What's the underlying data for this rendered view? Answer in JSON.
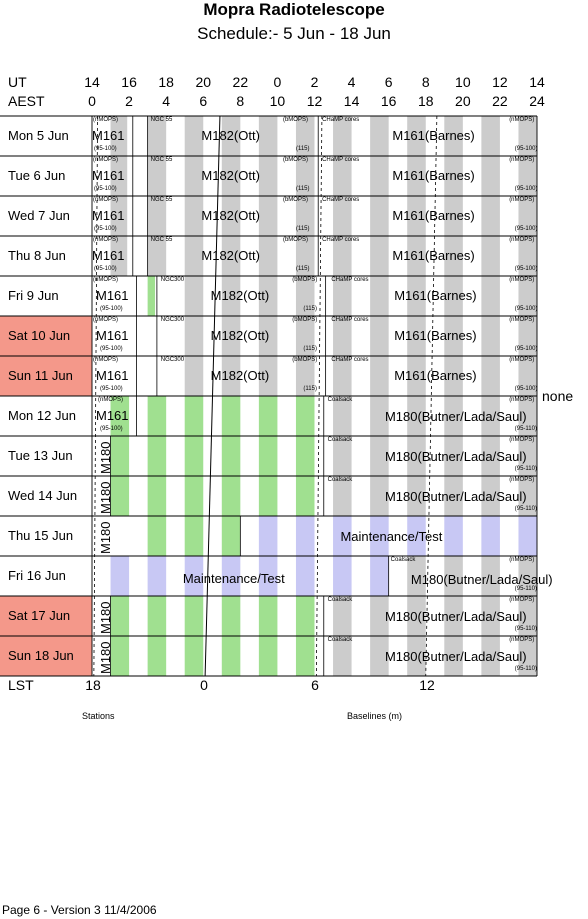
{
  "title": "Mopra Radiotelescope",
  "subtitle": "Schedule:- 5  Jun - 18 Jun",
  "ut_label": "UT",
  "aest_label": "AEST",
  "lst_label": "LST",
  "ut_ticks": [
    "14",
    "16",
    "18",
    "20",
    "22",
    "0",
    "2",
    "4",
    "6",
    "8",
    "10",
    "12",
    "14"
  ],
  "aest_ticks": [
    "0",
    "2",
    "4",
    "6",
    "8",
    "10",
    "12",
    "14",
    "16",
    "18",
    "20",
    "22",
    "24"
  ],
  "lst_ticks": [
    "18",
    "0",
    "6",
    "12"
  ],
  "stations_label": "Stations",
  "baselines_label": "Baselines (m)",
  "none_label": "none",
  "footer": "Page 6 - Version 3  11/4/2006",
  "colors": {
    "weekend": "#f4988a",
    "green": "#a0e090",
    "grey": "#cccccc",
    "blue": "#c8c8f4"
  },
  "days": [
    {
      "label": "Mon    5  Jun",
      "weekend": false
    },
    {
      "label": "Tue    6  Jun",
      "weekend": false
    },
    {
      "label": "Wed   7  Jun",
      "weekend": false
    },
    {
      "label": "Thu    8  Jun",
      "weekend": false
    },
    {
      "label": "Fri     9  Jun",
      "weekend": false
    },
    {
      "label": "Sat   10 Jun",
      "weekend": true
    },
    {
      "label": "Sun   11 Jun",
      "weekend": true
    },
    {
      "label": "Mon   12 Jun",
      "weekend": false
    },
    {
      "label": "Tue    13 Jun",
      "weekend": false
    },
    {
      "label": "Wed   14 Jun",
      "weekend": false
    },
    {
      "label": "Thu    15 Jun",
      "weekend": false
    },
    {
      "label": "Fri     16 Jun",
      "weekend": false
    },
    {
      "label": "Sat    17 Jun",
      "weekend": true
    },
    {
      "label": "Sun   18 Jun",
      "weekend": true
    }
  ],
  "text": {
    "nmops": "(nMOPS)",
    "bmops": "(bMOPS)",
    "m161": "M161",
    "r95": "(95-100)",
    "ngc55": "NGC 55",
    "ngc300": "NGC300",
    "m182": "M182(Ott)",
    "r115": "(115)",
    "champ": "CHaMP cores",
    "m161b": "M161(Barnes)",
    "coalsack": "Coalsack",
    "m180b": "M180(Butner/Lada/Saul)",
    "r96": "(95-110)",
    "m180": "M180",
    "maint": "Maintenance/Test"
  }
}
